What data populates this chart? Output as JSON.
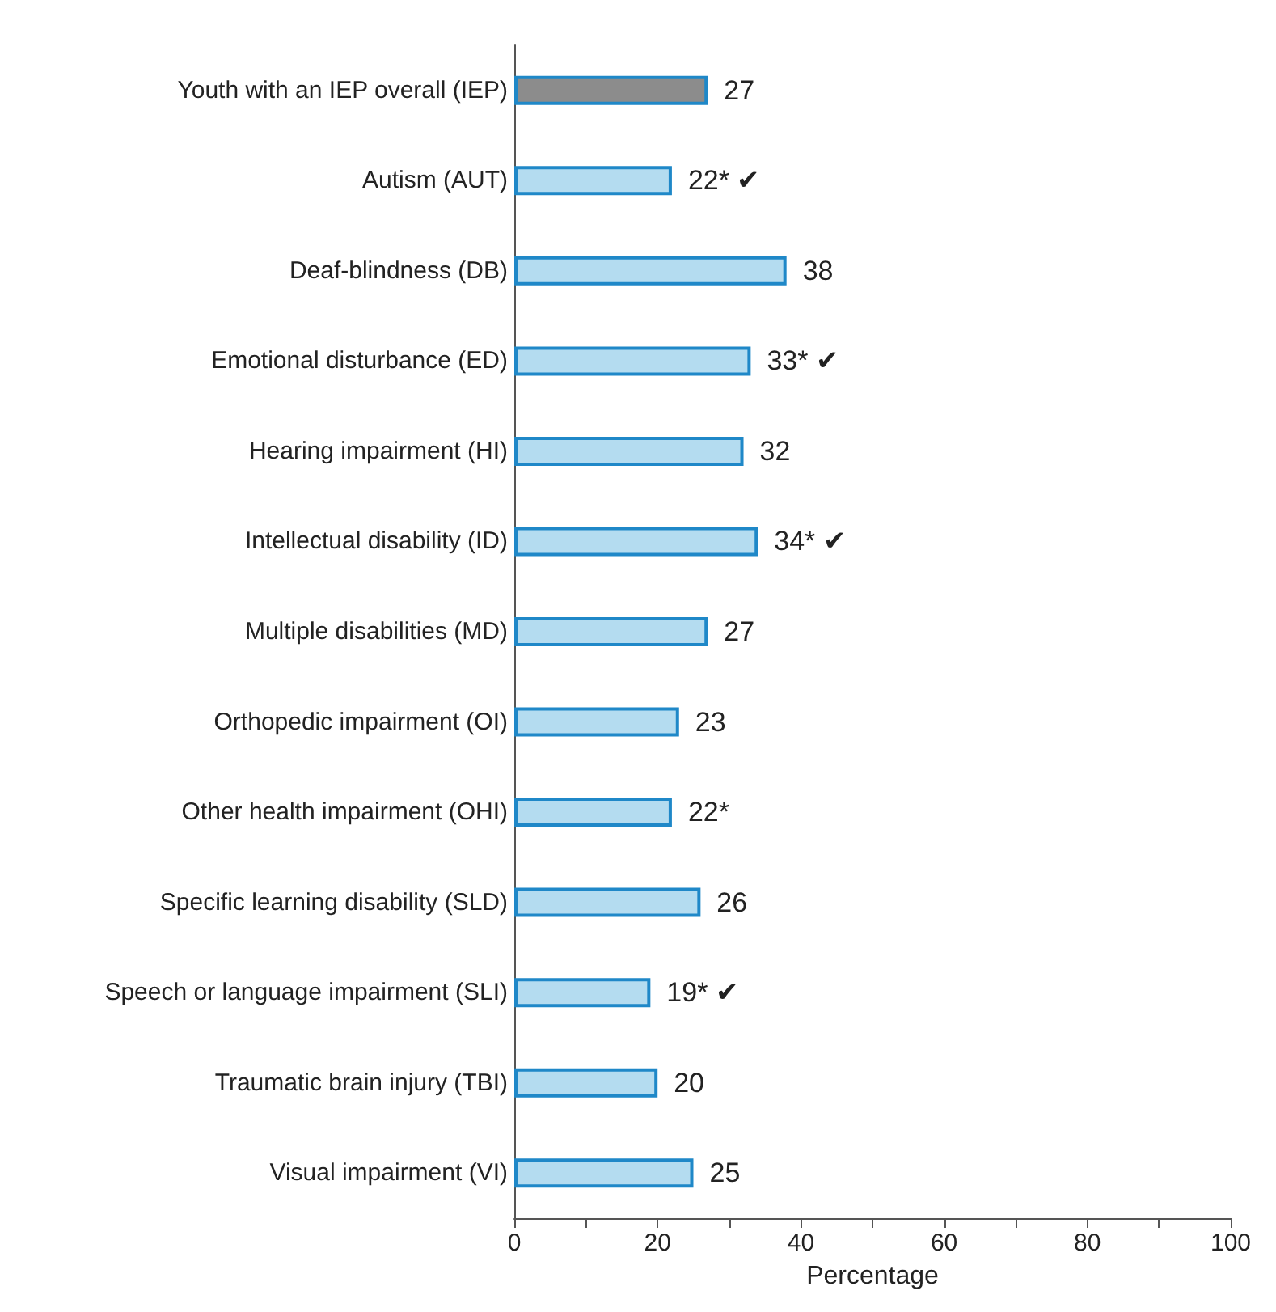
{
  "chart_data": {
    "type": "bar",
    "orientation": "horizontal",
    "xlabel": "Percentage",
    "categories": [
      "Youth with an IEP overall (IEP)",
      "Autism (AUT)",
      "Deaf-blindness (DB)",
      "Emotional disturbance (ED)",
      "Hearing impairment (HI)",
      "Intellectual disability (ID)",
      "Multiple disabilities (MD)",
      "Orthopedic impairment (OI)",
      "Other health impairment (OHI)",
      "Specific learning disability (SLD)",
      "Speech or language impairment (SLI)",
      "Traumatic brain injury (TBI)",
      "Visual impairment (VI)"
    ],
    "values": [
      27,
      22,
      38,
      33,
      32,
      34,
      27,
      23,
      22,
      26,
      19,
      20,
      25
    ],
    "value_labels": [
      "27",
      "22* ✔",
      "38",
      "33* ✔",
      "32",
      "34* ✔",
      "27",
      "23",
      "22*",
      "26",
      "19* ✔",
      "20",
      "25"
    ],
    "colors": [
      "#8c8c8c",
      "#b4dcf0",
      "#b4dcf0",
      "#b4dcf0",
      "#b4dcf0",
      "#b4dcf0",
      "#b4dcf0",
      "#b4dcf0",
      "#b4dcf0",
      "#b4dcf0",
      "#b4dcf0",
      "#b4dcf0",
      "#b4dcf0"
    ],
    "xlim": [
      0,
      100
    ],
    "xticks": [
      0,
      {
        "value": 10,
        "label": null
      },
      20,
      {
        "value": 30,
        "label": null
      },
      40,
      {
        "value": 50,
        "label": null
      },
      60,
      {
        "value": 70,
        "label": null
      },
      80,
      {
        "value": 90,
        "label": null
      },
      100
    ],
    "grid": false
  }
}
